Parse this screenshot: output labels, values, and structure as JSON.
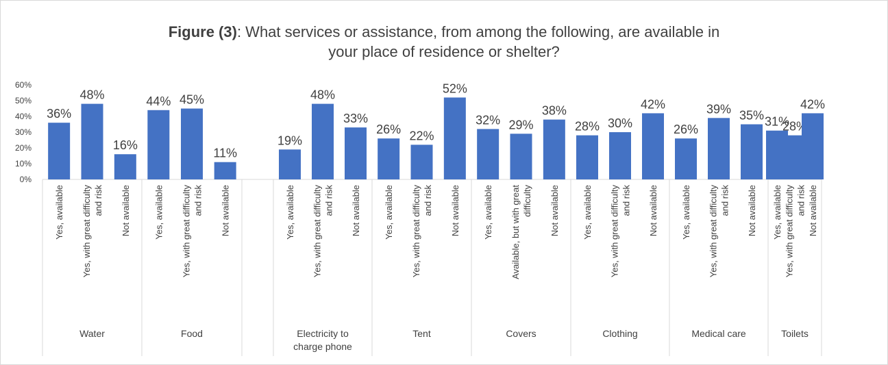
{
  "title": {
    "bold": "Figure (3)",
    "rest": ": What services or assistance, from among the following, are available in",
    "line2": "your place of residence or shelter?"
  },
  "colors": {
    "bar": "#4472c4",
    "axis": "#d9d9d9",
    "text": "#404040"
  },
  "chart_data": {
    "type": "bar",
    "ylim": [
      0,
      60
    ],
    "yticks": [
      "0%",
      "10%",
      "20%",
      "30%",
      "40%",
      "50%",
      "60%"
    ],
    "grid": false,
    "groups": [
      {
        "label": [
          "Water"
        ],
        "items": [
          {
            "label": [
              "Yes, available"
            ],
            "value": 36,
            "display": "36%"
          },
          {
            "label": [
              "Yes, with great difficulty",
              "and risk"
            ],
            "value": 48,
            "display": "48%"
          },
          {
            "label": [
              "Not available"
            ],
            "value": 16,
            "display": "16%"
          }
        ]
      },
      {
        "label": [
          "Food"
        ],
        "items": [
          {
            "label": [
              "Yes, available"
            ],
            "value": 44,
            "display": "44%"
          },
          {
            "label": [
              "Yes, with great difficulty",
              "and risk"
            ],
            "value": 45,
            "display": "45%"
          },
          {
            "label": [
              "Not available"
            ],
            "value": 11,
            "display": "11%"
          }
        ]
      },
      {
        "label": [
          "Electricity to",
          "charge phone"
        ],
        "items": [
          {
            "label": [
              "Yes, available"
            ],
            "value": 19,
            "display": "19%"
          },
          {
            "label": [
              "Yes, with great difficulty",
              "and risk"
            ],
            "value": 48,
            "display": "48%"
          },
          {
            "label": [
              "Not available"
            ],
            "value": 33,
            "display": "33%"
          }
        ]
      },
      {
        "label": [
          "Tent"
        ],
        "items": [
          {
            "label": [
              "Yes, available"
            ],
            "value": 26,
            "display": "26%"
          },
          {
            "label": [
              "Yes, with great difficulty",
              "and risk"
            ],
            "value": 22,
            "display": "22%"
          },
          {
            "label": [
              "Not available"
            ],
            "value": 52,
            "display": "52%"
          }
        ]
      },
      {
        "label": [
          "Covers"
        ],
        "items": [
          {
            "label": [
              "Yes, available"
            ],
            "value": 32,
            "display": "32%"
          },
          {
            "label": [
              "Available, but with great",
              "difficulty"
            ],
            "value": 29,
            "display": "29%"
          },
          {
            "label": [
              "Not available"
            ],
            "value": 38,
            "display": "38%"
          }
        ]
      },
      {
        "label": [
          "Clothing"
        ],
        "items": [
          {
            "label": [
              "Yes, available"
            ],
            "value": 28,
            "display": "28%"
          },
          {
            "label": [
              "Yes, with great difficulty",
              "and risk"
            ],
            "value": 30,
            "display": "30%"
          },
          {
            "label": [
              "Not available"
            ],
            "value": 42,
            "display": "42%"
          }
        ]
      },
      {
        "label": [
          "Medical care"
        ],
        "items": [
          {
            "label": [
              "Yes, available"
            ],
            "value": 26,
            "display": "26%"
          },
          {
            "label": [
              "Yes, with great difficulty",
              "and risk"
            ],
            "value": 39,
            "display": "39%"
          },
          {
            "label": [
              "Not available"
            ],
            "value": 35,
            "display": "35%"
          }
        ]
      },
      {
        "label": [
          "Toilets"
        ],
        "items": [
          {
            "label": [
              "Yes, available"
            ],
            "value": 31,
            "display": "31%"
          },
          {
            "label": [
              "Yes, with great difficulty",
              "and risk"
            ],
            "value": 28,
            "display": "28%"
          },
          {
            "label": [
              "Not available"
            ],
            "value": 42,
            "display": "42%"
          }
        ]
      }
    ]
  }
}
